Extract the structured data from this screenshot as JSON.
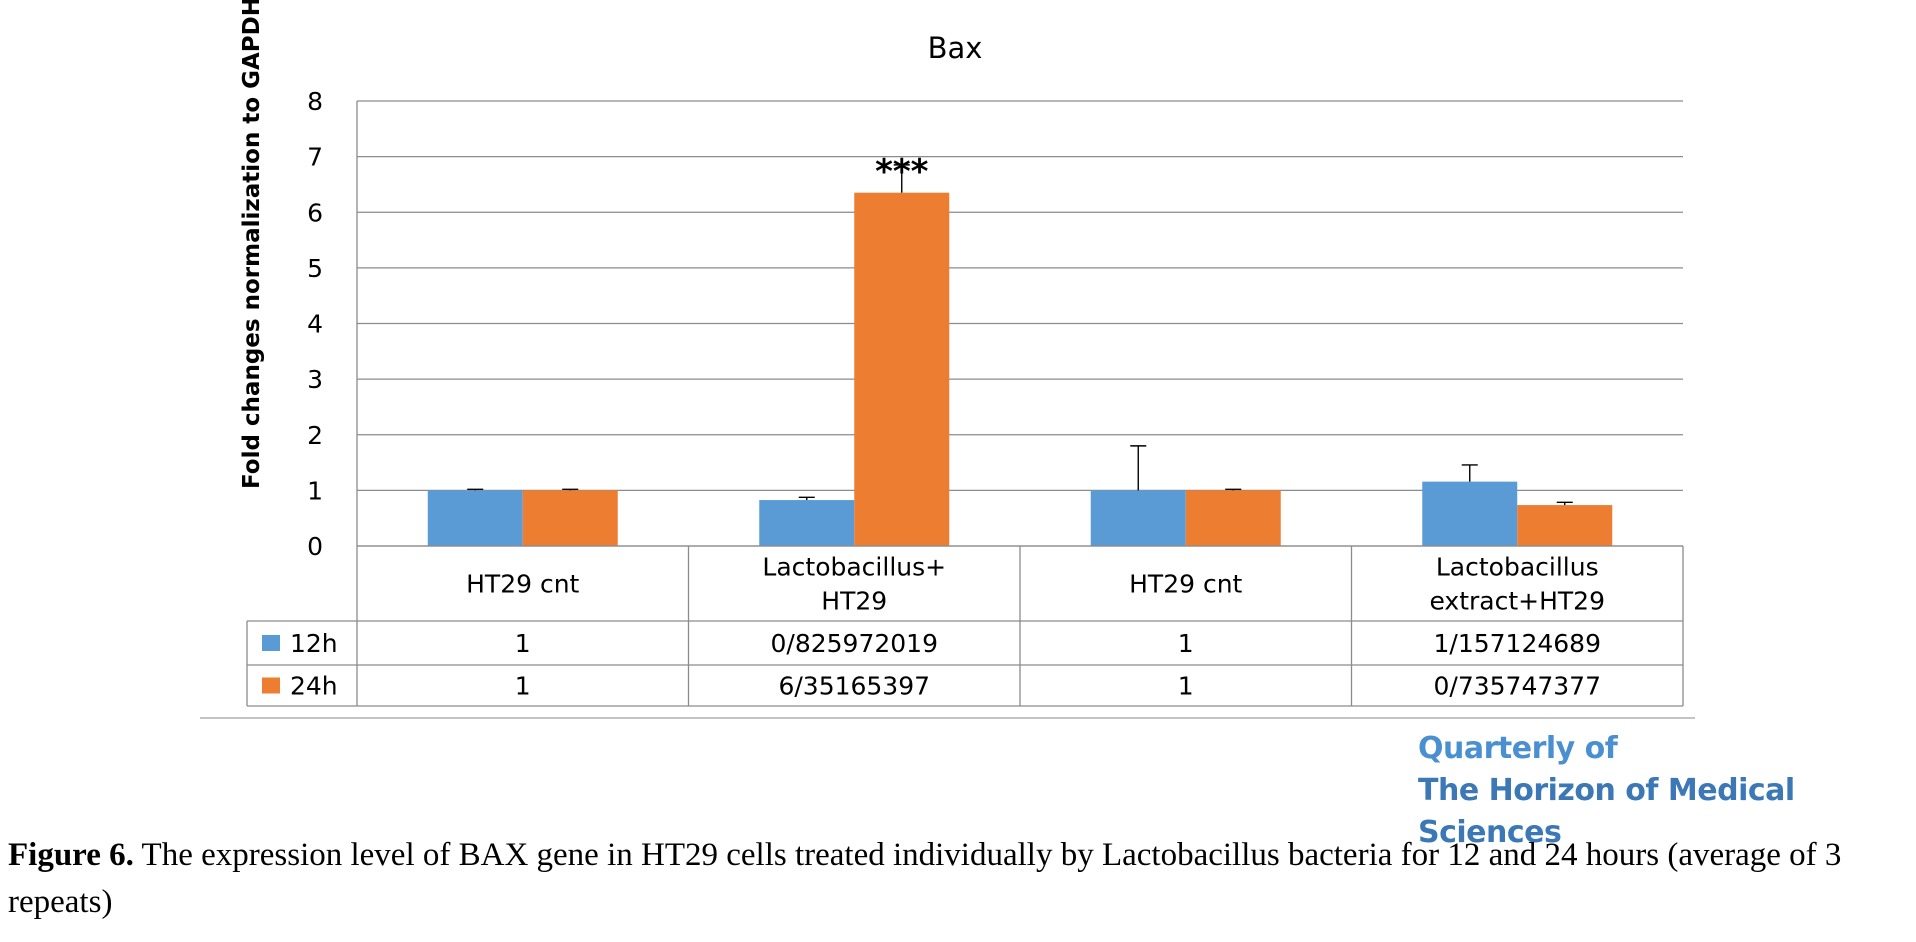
{
  "chart_data": {
    "type": "bar",
    "title": "Bax",
    "ylabel": "Fold changes normalization  to GAPDH",
    "xlabel": "",
    "ylim": [
      0,
      8
    ],
    "yticks": [
      "0",
      "1",
      "2",
      "3",
      "4",
      "5",
      "6",
      "7",
      "8"
    ],
    "grid": true,
    "categories": [
      "HT29 cnt",
      "Lactobacillus+\nHT29",
      "HT29 cnt",
      "Lactobacillus\nextract+HT29"
    ],
    "series": [
      {
        "name": "12h",
        "color": "#5b9bd5",
        "values": [
          1,
          0.825972019,
          1,
          1.157124689
        ],
        "errors": [
          0.02,
          0.05,
          0.8,
          0.3
        ],
        "table_values": [
          "1",
          "0/825972019",
          "1",
          "1/157124689"
        ]
      },
      {
        "name": "24h",
        "color": "#ed7d31",
        "values": [
          1,
          6.35165397,
          1,
          0.735747377
        ],
        "errors": [
          0.02,
          0.5,
          0.02,
          0.05
        ],
        "table_values": [
          "1",
          "6/35165397",
          "1",
          "0/735747377"
        ]
      }
    ],
    "annotations": [
      {
        "category_index": 1,
        "series_index": 1,
        "text": "***"
      }
    ],
    "legend": "data-table-left"
  },
  "watermark": {
    "line1": "Quarterly of",
    "line2": "The Horizon of Medical Sciences"
  },
  "caption": {
    "label": "Figure 6.",
    "text": " The expression level of BAX gene in HT29 cells treated individually by Lactobacillus bacteria for 12 and 24 hours (average of 3 repeats)"
  }
}
